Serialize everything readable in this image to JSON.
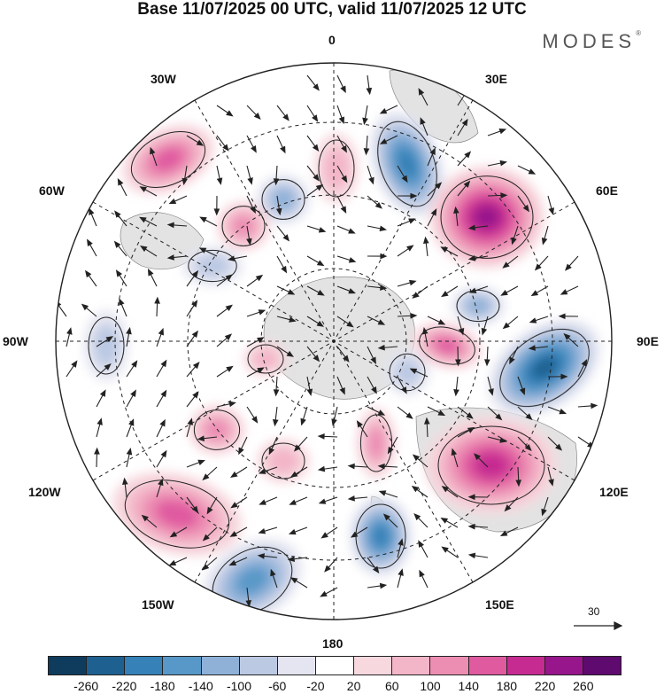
{
  "title": "Base 11/07/2025 00 UTC, valid 11/07/2025 12 UTC",
  "brand": "MODES",
  "brand_mark": "®",
  "longitude_labels": {
    "top": "0",
    "top_right": "30E",
    "right_upper": "60E",
    "right": "90E",
    "right_lower": "120E",
    "bottom_right": "150E",
    "bottom": "180",
    "bottom_left": "150W",
    "left_lower": "120W",
    "left": "90W",
    "left_upper": "60W",
    "top_left": "30W"
  },
  "reference_vector": "30",
  "colorbar": {
    "ticks": [
      "-260",
      "-220",
      "-180",
      "-140",
      "-100",
      "-60",
      "-20",
      "20",
      "60",
      "100",
      "140",
      "180",
      "220",
      "260"
    ],
    "colors": [
      "#0f3c5d",
      "#1e6191",
      "#3581b8",
      "#5898c8",
      "#8fb1d8",
      "#bcc9e3",
      "#e4e5f0",
      "#ffffff",
      "#f6d8de",
      "#f3b5c8",
      "#ec8db2",
      "#e05aa0",
      "#c62b91",
      "#98168c",
      "#5e0a6e"
    ]
  },
  "anomaly_features": [
    {
      "kind": "negative",
      "value": -180
    },
    {
      "kind": "negative",
      "value": -220
    },
    {
      "kind": "negative",
      "value": -140
    },
    {
      "kind": "negative",
      "value": -180
    },
    {
      "kind": "negative",
      "value": -100
    },
    {
      "kind": "negative",
      "value": -100
    },
    {
      "kind": "negative",
      "value": -60
    },
    {
      "kind": "negative",
      "value": -60
    },
    {
      "kind": "negative",
      "value": -60
    },
    {
      "kind": "positive",
      "value": 140
    },
    {
      "kind": "positive",
      "value": 180
    },
    {
      "kind": "positive",
      "value": 220
    },
    {
      "kind": "positive",
      "value": 140
    },
    {
      "kind": "positive",
      "value": 140
    },
    {
      "kind": "positive",
      "value": 100
    },
    {
      "kind": "positive",
      "value": 100
    },
    {
      "kind": "positive",
      "value": 100
    },
    {
      "kind": "positive",
      "value": 60
    },
    {
      "kind": "positive",
      "value": 60
    },
    {
      "kind": "positive",
      "value": 60
    }
  ]
}
